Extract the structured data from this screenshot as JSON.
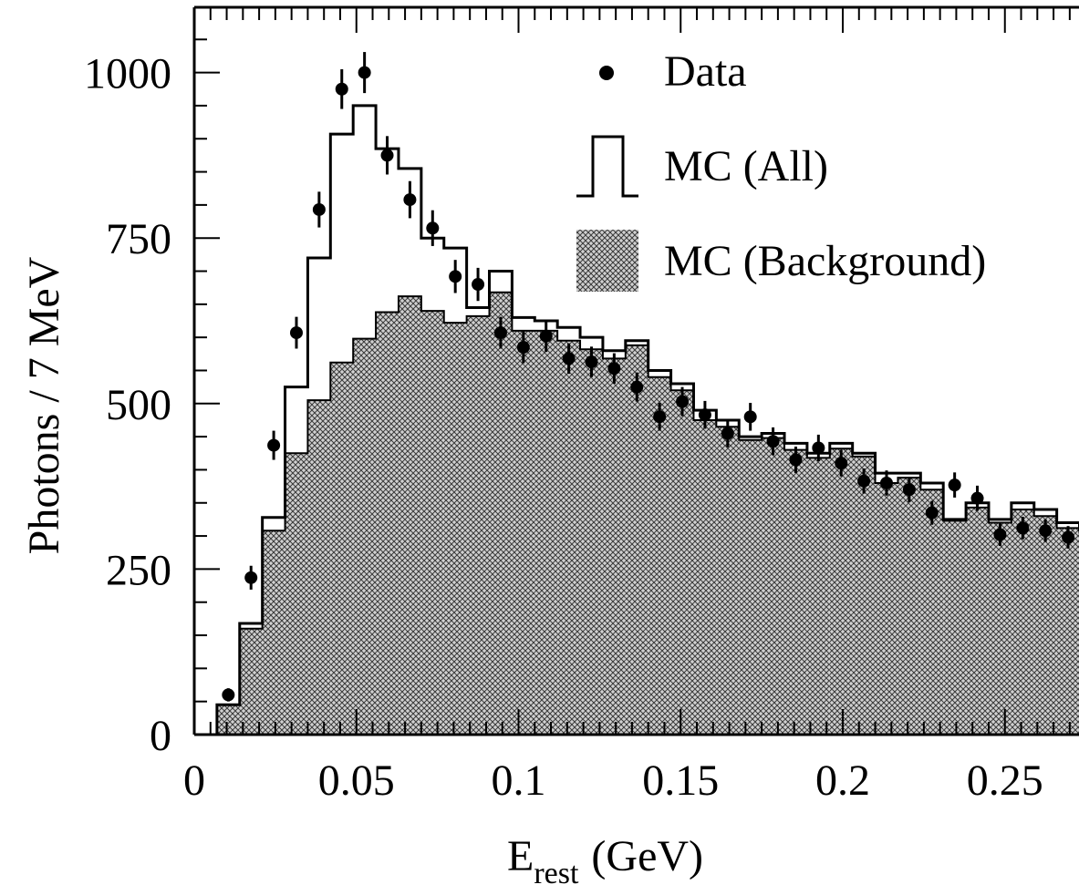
{
  "chart_data": {
    "type": "histogram",
    "title": "",
    "xlabel": {
      "main": "E",
      "sub": "rest",
      "unit": "(GeV)"
    },
    "ylabel": "Photons / 7 MeV",
    "xlim": [
      0,
      0.28
    ],
    "ylim": [
      0,
      1100
    ],
    "x_ticks": [
      {
        "v": 0,
        "label": "0"
      },
      {
        "v": 0.05,
        "label": "0.05"
      },
      {
        "v": 0.1,
        "label": "0.1"
      },
      {
        "v": 0.15,
        "label": "0.15"
      },
      {
        "v": 0.2,
        "label": "0.2"
      },
      {
        "v": 0.25,
        "label": "0.25"
      }
    ],
    "y_ticks": [
      {
        "v": 0,
        "label": "0"
      },
      {
        "v": 250,
        "label": "250"
      },
      {
        "v": 500,
        "label": "500"
      },
      {
        "v": 750,
        "label": "750"
      },
      {
        "v": 1000,
        "label": "1000"
      }
    ],
    "bin_edges": [
      0.007,
      0.014,
      0.021,
      0.028,
      0.035,
      0.042,
      0.049,
      0.056,
      0.063,
      0.07,
      0.077,
      0.084,
      0.091,
      0.098,
      0.105,
      0.112,
      0.119,
      0.126,
      0.133,
      0.14,
      0.147,
      0.154,
      0.161,
      0.168,
      0.175,
      0.182,
      0.189,
      0.196,
      0.203,
      0.21,
      0.217,
      0.224,
      0.231,
      0.238,
      0.245,
      0.252,
      0.259,
      0.266,
      0.273,
      0.28
    ],
    "series": [
      {
        "name": "MC (All)",
        "kind": "step",
        "values": [
          45,
          168,
          328,
          525,
          720,
          907,
          950,
          885,
          855,
          750,
          735,
          645,
          700,
          630,
          625,
          615,
          600,
          580,
          595,
          550,
          530,
          490,
          475,
          450,
          455,
          440,
          425,
          440,
          425,
          395,
          395,
          380,
          325,
          350,
          325,
          350,
          340,
          320,
          310
        ]
      },
      {
        "name": "MC (Background)",
        "kind": "filled-step",
        "values": [
          45,
          160,
          308,
          425,
          505,
          562,
          598,
          638,
          662,
          640,
          622,
          632,
          668,
          610,
          610,
          595,
          582,
          568,
          588,
          540,
          520,
          475,
          465,
          445,
          448,
          430,
          418,
          432,
          420,
          380,
          388,
          370,
          323,
          343,
          320,
          340,
          330,
          312,
          305
        ]
      },
      {
        "name": "Data",
        "kind": "points",
        "x": [
          0.0105,
          0.0175,
          0.0245,
          0.0315,
          0.0385,
          0.0455,
          0.0525,
          0.0595,
          0.0665,
          0.0735,
          0.0805,
          0.0875,
          0.0945,
          0.1015,
          0.1085,
          0.1155,
          0.1225,
          0.1295,
          0.1365,
          0.1435,
          0.1505,
          0.1575,
          0.1645,
          0.1715,
          0.1785,
          0.1855,
          0.1925,
          0.1995,
          0.2065,
          0.2135,
          0.2205,
          0.2275,
          0.2345,
          0.2415,
          0.2485,
          0.2555,
          0.2625,
          0.2695,
          0.2765
        ],
        "y": [
          60,
          237,
          437,
          607,
          793,
          975,
          1000,
          875,
          808,
          765,
          692,
          680,
          607,
          585,
          602,
          568,
          563,
          553,
          525,
          480,
          503,
          483,
          455,
          480,
          443,
          415,
          433,
          410,
          383,
          380,
          370,
          335,
          377,
          357,
          302,
          312,
          308,
          298,
          295
        ],
        "err": [
          10,
          18,
          22,
          24,
          27,
          30,
          31,
          29,
          28,
          27,
          25,
          25,
          24,
          24,
          24,
          23,
          23,
          23,
          22,
          21,
          22,
          21,
          21,
          21,
          21,
          20,
          20,
          20,
          19,
          19,
          19,
          18,
          19,
          19,
          17,
          17,
          17,
          17,
          17
        ]
      }
    ],
    "legend": {
      "position": "top-right",
      "entries": [
        {
          "label": "Data",
          "symbol": "point"
        },
        {
          "label": "MC (All)",
          "symbol": "step"
        },
        {
          "label": "MC (Background)",
          "symbol": "hatched-box"
        }
      ]
    },
    "grid": false
  }
}
